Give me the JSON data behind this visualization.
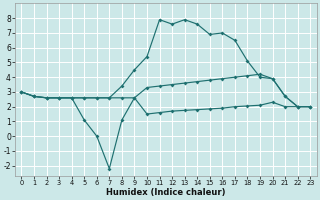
{
  "xlabel": "Humidex (Indice chaleur)",
  "background_color": "#cce8e8",
  "grid_color": "#ffffff",
  "line_color": "#1e7070",
  "xlim": [
    -0.5,
    23.5
  ],
  "ylim": [
    -2.7,
    9.0
  ],
  "xticks": [
    0,
    1,
    2,
    3,
    4,
    5,
    6,
    7,
    8,
    9,
    10,
    11,
    12,
    13,
    14,
    15,
    16,
    17,
    18,
    19,
    20,
    21,
    22,
    23
  ],
  "yticks": [
    -2,
    -1,
    0,
    1,
    2,
    3,
    4,
    5,
    6,
    7,
    8
  ],
  "curve1_x": [
    0,
    1,
    2,
    3,
    4,
    5,
    6,
    7,
    8,
    9,
    10,
    11,
    12,
    13,
    14,
    15,
    16,
    17,
    18,
    19,
    20,
    21,
    22,
    23
  ],
  "curve1_y": [
    3.0,
    2.7,
    2.6,
    2.6,
    2.6,
    2.6,
    2.6,
    2.6,
    3.4,
    4.5,
    5.4,
    7.9,
    7.6,
    7.9,
    7.6,
    6.9,
    7.0,
    6.5,
    5.1,
    4.0,
    3.9,
    2.7,
    2.0,
    2.0
  ],
  "curve2_x": [
    0,
    1,
    2,
    3,
    4,
    5,
    6,
    7,
    8,
    9,
    10,
    11,
    12,
    13,
    14,
    15,
    16,
    17,
    18,
    19,
    20,
    21,
    22,
    23
  ],
  "curve2_y": [
    3.0,
    2.7,
    2.6,
    2.6,
    2.6,
    1.1,
    0.0,
    -2.2,
    1.1,
    2.6,
    3.3,
    3.4,
    3.5,
    3.6,
    3.7,
    3.8,
    3.9,
    4.0,
    4.1,
    4.2,
    3.9,
    2.7,
    2.0,
    2.0
  ],
  "curve3_x": [
    0,
    1,
    2,
    3,
    4,
    5,
    6,
    7,
    8,
    9,
    10,
    11,
    12,
    13,
    14,
    15,
    16,
    17,
    18,
    19,
    20,
    21,
    22,
    23
  ],
  "curve3_y": [
    3.0,
    2.7,
    2.6,
    2.6,
    2.6,
    2.6,
    2.6,
    2.6,
    2.6,
    2.6,
    1.5,
    1.6,
    1.7,
    1.75,
    1.8,
    1.85,
    1.9,
    2.0,
    2.05,
    2.1,
    2.3,
    2.0,
    2.0,
    2.0
  ]
}
